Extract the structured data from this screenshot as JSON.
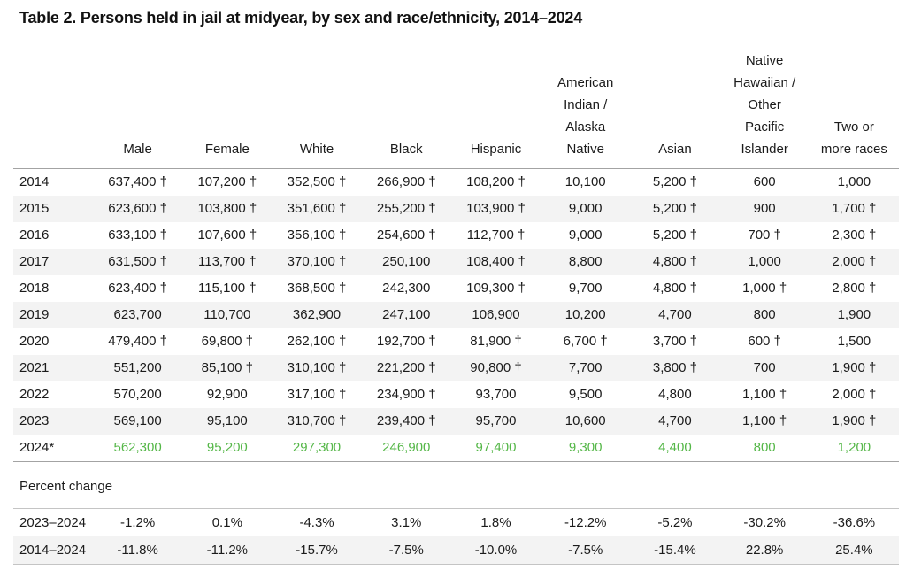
{
  "title": "Table 2. Persons held in jail at midyear, by sex and race/ethnicity, 2014–2024",
  "colors": {
    "highlight_green": "#55b748",
    "stripe_gray": "#f3f3f3"
  },
  "table": {
    "column_headers": [
      "",
      "Male",
      "Female",
      "White",
      "Black",
      "Hispanic",
      "American\nIndian /\nAlaska\nNative",
      "Asian",
      "Native\nHawaiian /\nOther\nPacific\nIslander",
      "Two or\nmore races"
    ],
    "rows": [
      {
        "year": "2014",
        "highlight": false,
        "values": [
          "637,400 †",
          "107,200 †",
          "352,500 †",
          "266,900 †",
          "108,200 †",
          "10,100",
          "5,200 †",
          "600",
          "1,000"
        ]
      },
      {
        "year": "2015",
        "highlight": false,
        "values": [
          "623,600 †",
          "103,800 †",
          "351,600 †",
          "255,200 †",
          "103,900 †",
          "9,000",
          "5,200 †",
          "900",
          "1,700 †"
        ]
      },
      {
        "year": "2016",
        "highlight": false,
        "values": [
          "633,100 †",
          "107,600 †",
          "356,100 †",
          "254,600 †",
          "112,700 †",
          "9,000",
          "5,200 †",
          "700 †",
          "2,300 †"
        ]
      },
      {
        "year": "2017",
        "highlight": false,
        "values": [
          "631,500 †",
          "113,700 †",
          "370,100 †",
          "250,100",
          "108,400 †",
          "8,800",
          "4,800 †",
          "1,000",
          "2,000 †"
        ]
      },
      {
        "year": "2018",
        "highlight": false,
        "values": [
          "623,400 †",
          "115,100 †",
          "368,500 †",
          "242,300",
          "109,300 †",
          "9,700",
          "4,800 †",
          "1,000 †",
          "2,800 †"
        ]
      },
      {
        "year": "2019",
        "highlight": false,
        "values": [
          "623,700",
          "110,700",
          "362,900",
          "247,100",
          "106,900",
          "10,200",
          "4,700",
          "800",
          "1,900"
        ]
      },
      {
        "year": "2020",
        "highlight": false,
        "values": [
          "479,400 †",
          "69,800 †",
          "262,100 †",
          "192,700 †",
          "81,900 †",
          "6,700 †",
          "3,700 †",
          "600 †",
          "1,500"
        ]
      },
      {
        "year": "2021",
        "highlight": false,
        "values": [
          "551,200",
          "85,100 †",
          "310,100 †",
          "221,200 †",
          "90,800 †",
          "7,700",
          "3,800 †",
          "700",
          "1,900 †"
        ]
      },
      {
        "year": "2022",
        "highlight": false,
        "values": [
          "570,200",
          "92,900",
          "317,100 †",
          "234,900 †",
          "93,700",
          "9,500",
          "4,800",
          "1,100 †",
          "2,000 †"
        ]
      },
      {
        "year": "2023",
        "highlight": false,
        "values": [
          "569,100",
          "95,100",
          "310,700 †",
          "239,400 †",
          "95,700",
          "10,600",
          "4,700",
          "1,100 †",
          "1,900 †"
        ]
      },
      {
        "year": "2024*",
        "highlight": true,
        "values": [
          "562,300",
          "95,200",
          "297,300",
          "246,900",
          "97,400",
          "9,300",
          "4,400",
          "800",
          "1,200"
        ]
      }
    ]
  },
  "percent_change": {
    "heading": "Percent change",
    "rows": [
      {
        "period": "2023–2024",
        "values": [
          "-1.2%",
          "0.1%",
          "-4.3%",
          "3.1%",
          "1.8%",
          "-12.2%",
          "-5.2%",
          "-30.2%",
          "-36.6%"
        ]
      },
      {
        "period": "2014–2024",
        "values": [
          "-11.8%",
          "-11.2%",
          "-15.7%",
          "-7.5%",
          "-10.0%",
          "-7.5%",
          "-15.4%",
          "22.8%",
          "25.4%"
        ]
      }
    ]
  }
}
